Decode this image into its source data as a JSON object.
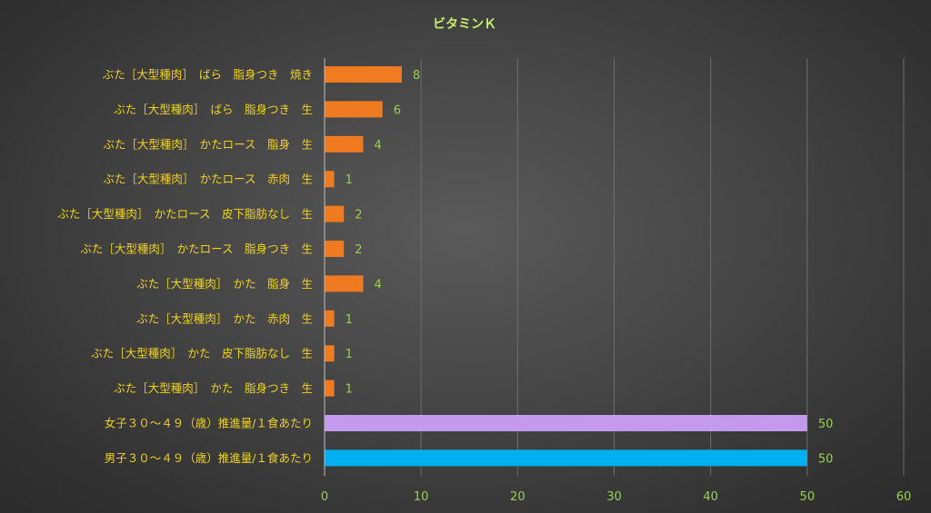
{
  "chart_data": {
    "type": "bar",
    "orientation": "horizontal",
    "title": "ビタミンＫ",
    "xlim": [
      0,
      60
    ],
    "ticks": [
      0,
      10,
      20,
      30,
      40,
      50,
      60
    ],
    "grid": true,
    "legend": "none",
    "categories": [
      "ぶた［大型種肉］　ばら　脂身つき　焼き",
      "ぶた［大型種肉］　ばら　脂身つき　生",
      "ぶた［大型種肉］　かたロース　脂身　生",
      "ぶた［大型種肉］　かたロース　赤肉　生",
      "ぶた［大型種肉］　かたロース　皮下脂肪なし　生",
      "ぶた［大型種肉］　かたロース　脂身つき　生",
      "ぶた［大型種肉］　かた　脂身　生",
      "ぶた［大型種肉］　かた　赤肉　生",
      "ぶた［大型種肉］　かた　皮下脂肪なし　生",
      "ぶた［大型種肉］　かた　脂身つき　生",
      "女子３０～４９（歳）推進量/１食あたり",
      "男子３０～４９（歳）推進量/１食あたり"
    ],
    "values": [
      8,
      6,
      4,
      1,
      2,
      2,
      4,
      1,
      1,
      1,
      50,
      50
    ],
    "data_labels": [
      "8",
      "6",
      "4",
      "1",
      "2",
      "2",
      "4",
      "1",
      "1",
      "1",
      "50",
      "50"
    ],
    "tick_labels": [
      "0",
      "10",
      "20",
      "30",
      "40",
      "50",
      "60"
    ],
    "colors": [
      "#f07a20",
      "#f07a20",
      "#f07a20",
      "#f07a20",
      "#f07a20",
      "#f07a20",
      "#f07a20",
      "#f07a20",
      "#f07a20",
      "#f07a20",
      "#c49aef",
      "#00b0f0"
    ]
  }
}
